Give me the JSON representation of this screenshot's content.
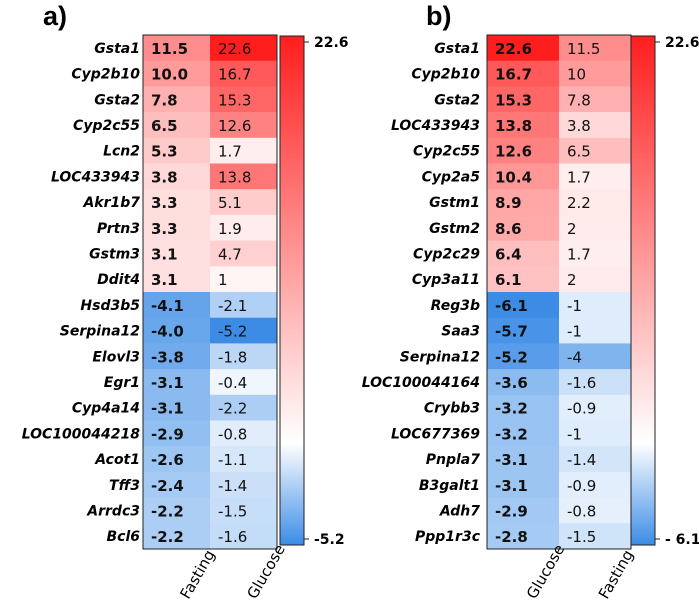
{
  "colors": {
    "max": "#ff1e1e",
    "mid": "#ffffff",
    "min": "#3c8ce6",
    "text": "#000000"
  },
  "chart_data": [
    {
      "type": "heatmap",
      "panel": "a)",
      "columns": [
        "Fasting",
        "Glucose"
      ],
      "bold_column": 0,
      "scale": {
        "max": 22.6,
        "min": -5.2,
        "max_label": "22.6",
        "min_label": "-5.2"
      },
      "rows": [
        {
          "gene": "Gsta1",
          "values": [
            11.5,
            22.6
          ],
          "labels": [
            "11.5",
            "22.6"
          ]
        },
        {
          "gene": "Cyp2b10",
          "values": [
            10.0,
            16.7
          ],
          "labels": [
            "10.0",
            "16.7"
          ]
        },
        {
          "gene": "Gsta2",
          "values": [
            7.8,
            15.3
          ],
          "labels": [
            "7.8",
            "15.3"
          ]
        },
        {
          "gene": "Cyp2c55",
          "values": [
            6.5,
            12.6
          ],
          "labels": [
            "6.5",
            "12.6"
          ]
        },
        {
          "gene": "Lcn2",
          "values": [
            5.3,
            1.7
          ],
          "labels": [
            "5.3",
            "1.7"
          ]
        },
        {
          "gene": "LOC433943",
          "values": [
            3.8,
            13.8
          ],
          "labels": [
            "3.8",
            "13.8"
          ]
        },
        {
          "gene": "Akr1b7",
          "values": [
            3.3,
            5.1
          ],
          "labels": [
            "3.3",
            "5.1"
          ]
        },
        {
          "gene": "Prtn3",
          "values": [
            3.3,
            1.9
          ],
          "labels": [
            "3.3",
            "1.9"
          ]
        },
        {
          "gene": "Gstm3",
          "values": [
            3.1,
            4.7
          ],
          "labels": [
            "3.1",
            "4.7"
          ]
        },
        {
          "gene": "Ddit4",
          "values": [
            3.1,
            1
          ],
          "labels": [
            "3.1",
            "1"
          ]
        },
        {
          "gene": "Hsd3b5",
          "values": [
            -4.1,
            -2.1
          ],
          "labels": [
            "-4.1",
            "-2.1"
          ]
        },
        {
          "gene": "Serpina12",
          "values": [
            -4.0,
            -5.2
          ],
          "labels": [
            "-4.0",
            "-5.2"
          ]
        },
        {
          "gene": "Elovl3",
          "values": [
            -3.8,
            -1.8
          ],
          "labels": [
            "-3.8",
            "-1.8"
          ]
        },
        {
          "gene": "Egr1",
          "values": [
            -3.1,
            -0.4
          ],
          "labels": [
            "-3.1",
            "-0.4"
          ]
        },
        {
          "gene": "Cyp4a14",
          "values": [
            -3.1,
            -2.2
          ],
          "labels": [
            "-3.1",
            "-2.2"
          ]
        },
        {
          "gene": "LOC100044218",
          "values": [
            -2.9,
            -0.8
          ],
          "labels": [
            "-2.9",
            "-0.8"
          ]
        },
        {
          "gene": "Acot1",
          "values": [
            -2.6,
            -1.1
          ],
          "labels": [
            "-2.6",
            "-1.1"
          ]
        },
        {
          "gene": "Tff3",
          "values": [
            -2.4,
            -1.4
          ],
          "labels": [
            "-2.4",
            "-1.4"
          ]
        },
        {
          "gene": "Arrdc3",
          "values": [
            -2.2,
            -1.5
          ],
          "labels": [
            "-2.2",
            "-1.5"
          ]
        },
        {
          "gene": "Bcl6",
          "values": [
            -2.2,
            -1.6
          ],
          "labels": [
            "-2.2",
            "-1.6"
          ]
        }
      ]
    },
    {
      "type": "heatmap",
      "panel": "b)",
      "columns": [
        "Glucose",
        "Fasting"
      ],
      "bold_column": 0,
      "scale": {
        "max": 22.6,
        "min": -6.1,
        "max_label": "22.6",
        "min_label": "- 6.1"
      },
      "rows": [
        {
          "gene": "Gsta1",
          "values": [
            22.6,
            11.5
          ],
          "labels": [
            "22.6",
            "11.5"
          ]
        },
        {
          "gene": "Cyp2b10",
          "values": [
            16.7,
            10
          ],
          "labels": [
            "16.7",
            "10"
          ]
        },
        {
          "gene": "Gsta2",
          "values": [
            15.3,
            7.8
          ],
          "labels": [
            "15.3",
            "7.8"
          ]
        },
        {
          "gene": "LOC433943",
          "values": [
            13.8,
            3.8
          ],
          "labels": [
            "13.8",
            "3.8"
          ]
        },
        {
          "gene": "Cyp2c55",
          "values": [
            12.6,
            6.5
          ],
          "labels": [
            "12.6",
            "6.5"
          ]
        },
        {
          "gene": "Cyp2a5",
          "values": [
            10.4,
            1.7
          ],
          "labels": [
            "10.4",
            "1.7"
          ]
        },
        {
          "gene": "Gstm1",
          "values": [
            8.9,
            2.2
          ],
          "labels": [
            "8.9",
            "2.2"
          ]
        },
        {
          "gene": "Gstm2",
          "values": [
            8.6,
            2
          ],
          "labels": [
            "8.6",
            "2"
          ]
        },
        {
          "gene": "Cyp2c29",
          "values": [
            6.4,
            1.7
          ],
          "labels": [
            "6.4",
            "1.7"
          ]
        },
        {
          "gene": "Cyp3a11",
          "values": [
            6.1,
            2
          ],
          "labels": [
            "6.1",
            "2"
          ]
        },
        {
          "gene": "Reg3b",
          "values": [
            -6.1,
            -1
          ],
          "labels": [
            "-6.1",
            "-1"
          ]
        },
        {
          "gene": "Saa3",
          "values": [
            -5.7,
            -1
          ],
          "labels": [
            "-5.7",
            "-1"
          ]
        },
        {
          "gene": "Serpina12",
          "values": [
            -5.2,
            -4
          ],
          "labels": [
            "-5.2",
            "-4"
          ]
        },
        {
          "gene": "LOC100044164",
          "values": [
            -3.6,
            -1.6
          ],
          "labels": [
            "-3.6",
            "-1.6"
          ]
        },
        {
          "gene": "Crybb3",
          "values": [
            -3.2,
            -0.9
          ],
          "labels": [
            "-3.2",
            "-0.9"
          ]
        },
        {
          "gene": "LOC677369",
          "values": [
            -3.2,
            -1
          ],
          "labels": [
            "-3.2",
            "-1"
          ]
        },
        {
          "gene": "Pnpla7",
          "values": [
            -3.1,
            -1.4
          ],
          "labels": [
            "-3.1",
            "-1.4"
          ]
        },
        {
          "gene": "B3galt1",
          "values": [
            -3.1,
            -0.9
          ],
          "labels": [
            "-3.1",
            "-0.9"
          ]
        },
        {
          "gene": "Adh7",
          "values": [
            -2.9,
            -0.8
          ],
          "labels": [
            "-2.9",
            "-0.8"
          ]
        },
        {
          "gene": "Ppp1r3c",
          "values": [
            -2.8,
            -1.5
          ],
          "labels": [
            "-2.8",
            "-1.5"
          ]
        }
      ]
    }
  ]
}
